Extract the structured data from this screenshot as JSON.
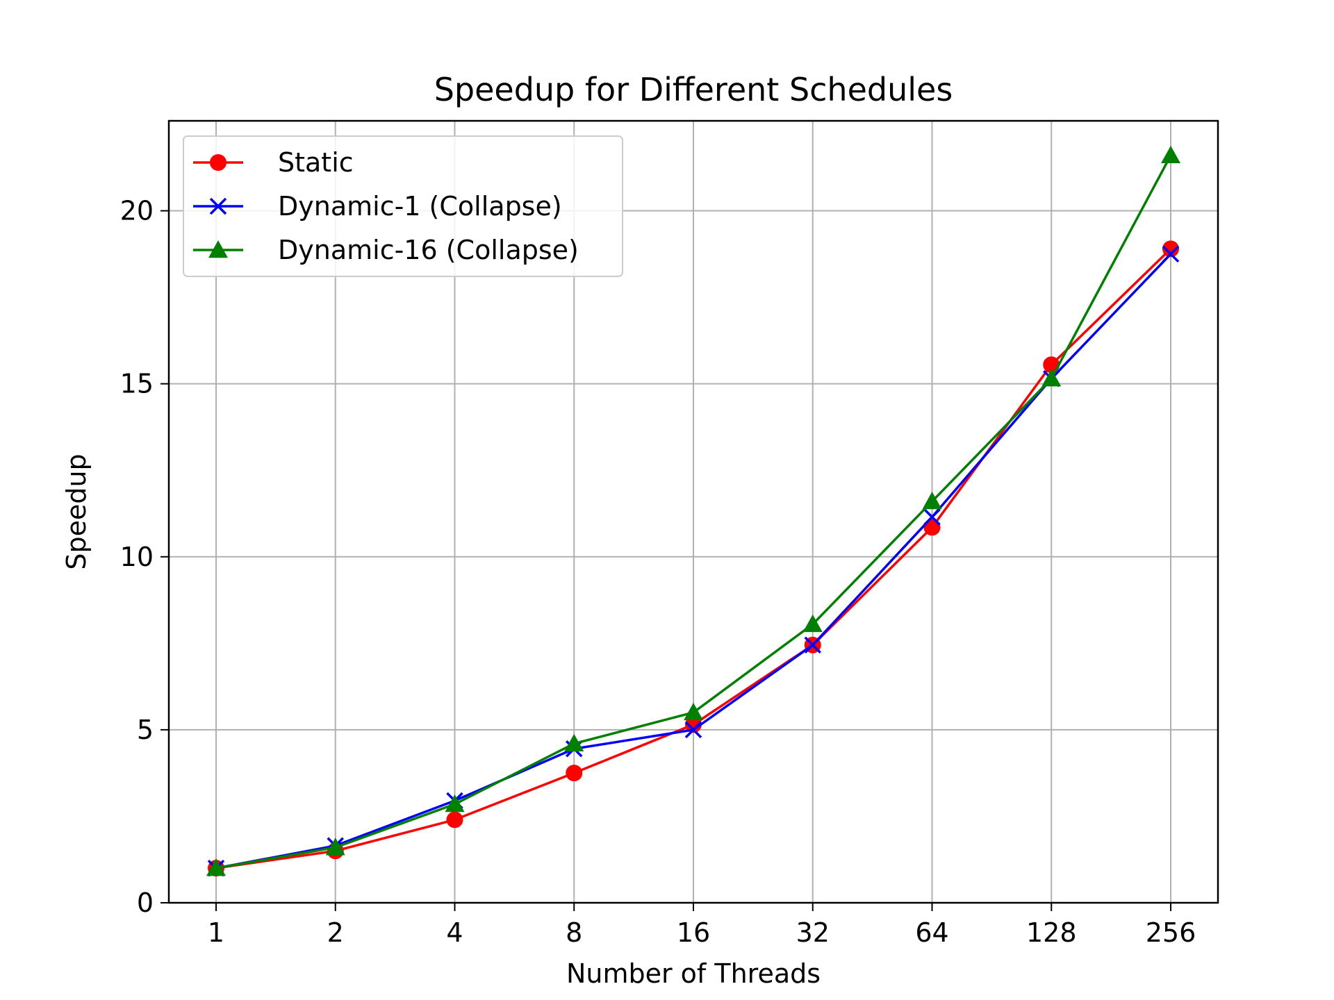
{
  "chart_data": {
    "type": "line",
    "title": "Speedup for Different Schedules",
    "xlabel": "Number of Threads",
    "ylabel": "Speedup",
    "categories": [
      "1",
      "2",
      "4",
      "8",
      "16",
      "32",
      "64",
      "128",
      "256"
    ],
    "ylim": [
      0,
      22.6
    ],
    "yticks": [
      "0",
      "5",
      "10",
      "15",
      "20"
    ],
    "grid": true,
    "legend_position": "upper-left",
    "series": [
      {
        "name": "Static",
        "color": "#ff0000",
        "marker": "circle",
        "values": [
          1.0,
          1.5,
          2.4,
          3.75,
          5.15,
          7.45,
          10.85,
          15.55,
          18.9
        ]
      },
      {
        "name": "Dynamic-1 (Collapse)",
        "color": "#0000ff",
        "marker": "x",
        "values": [
          1.0,
          1.65,
          2.95,
          4.45,
          5.0,
          7.45,
          11.15,
          15.15,
          18.75
        ]
      },
      {
        "name": "Dynamic-16 (Collapse)",
        "color": "#008000",
        "marker": "triangle",
        "values": [
          1.0,
          1.6,
          2.85,
          4.6,
          5.5,
          8.05,
          11.6,
          15.15,
          21.6
        ]
      }
    ]
  }
}
